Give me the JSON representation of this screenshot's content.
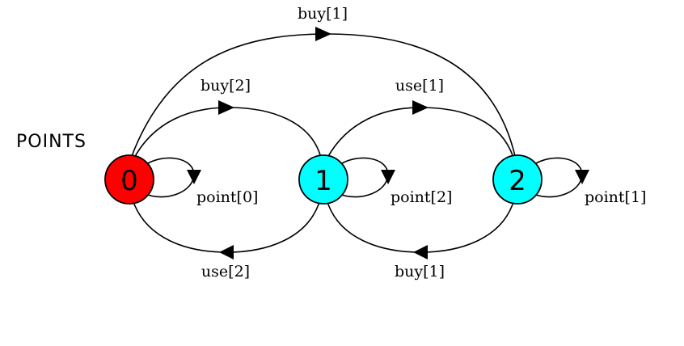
{
  "diagram": {
    "title": "POINTS",
    "states": [
      {
        "id": "s0",
        "label": "0",
        "color": "#ff0000"
      },
      {
        "id": "s1",
        "label": "1",
        "color": "#00ffff"
      },
      {
        "id": "s2",
        "label": "2",
        "color": "#00ffff"
      }
    ],
    "transitions": [
      {
        "id": "e0",
        "from": "0",
        "to": "2",
        "label": "buy[1]"
      },
      {
        "id": "e1",
        "from": "0",
        "to": "1",
        "label": "buy[2]"
      },
      {
        "id": "e2",
        "from": "1",
        "to": "2",
        "label": "use[1]"
      },
      {
        "id": "e3",
        "from": "0",
        "to": "0",
        "label": "point[0]"
      },
      {
        "id": "e4",
        "from": "1",
        "to": "1",
        "label": "point[2]"
      },
      {
        "id": "e5",
        "from": "2",
        "to": "2",
        "label": "point[1]"
      },
      {
        "id": "e6",
        "from": "1",
        "to": "0",
        "label": "use[2]"
      },
      {
        "id": "e7",
        "from": "2",
        "to": "1",
        "label": "buy[1]"
      }
    ]
  }
}
